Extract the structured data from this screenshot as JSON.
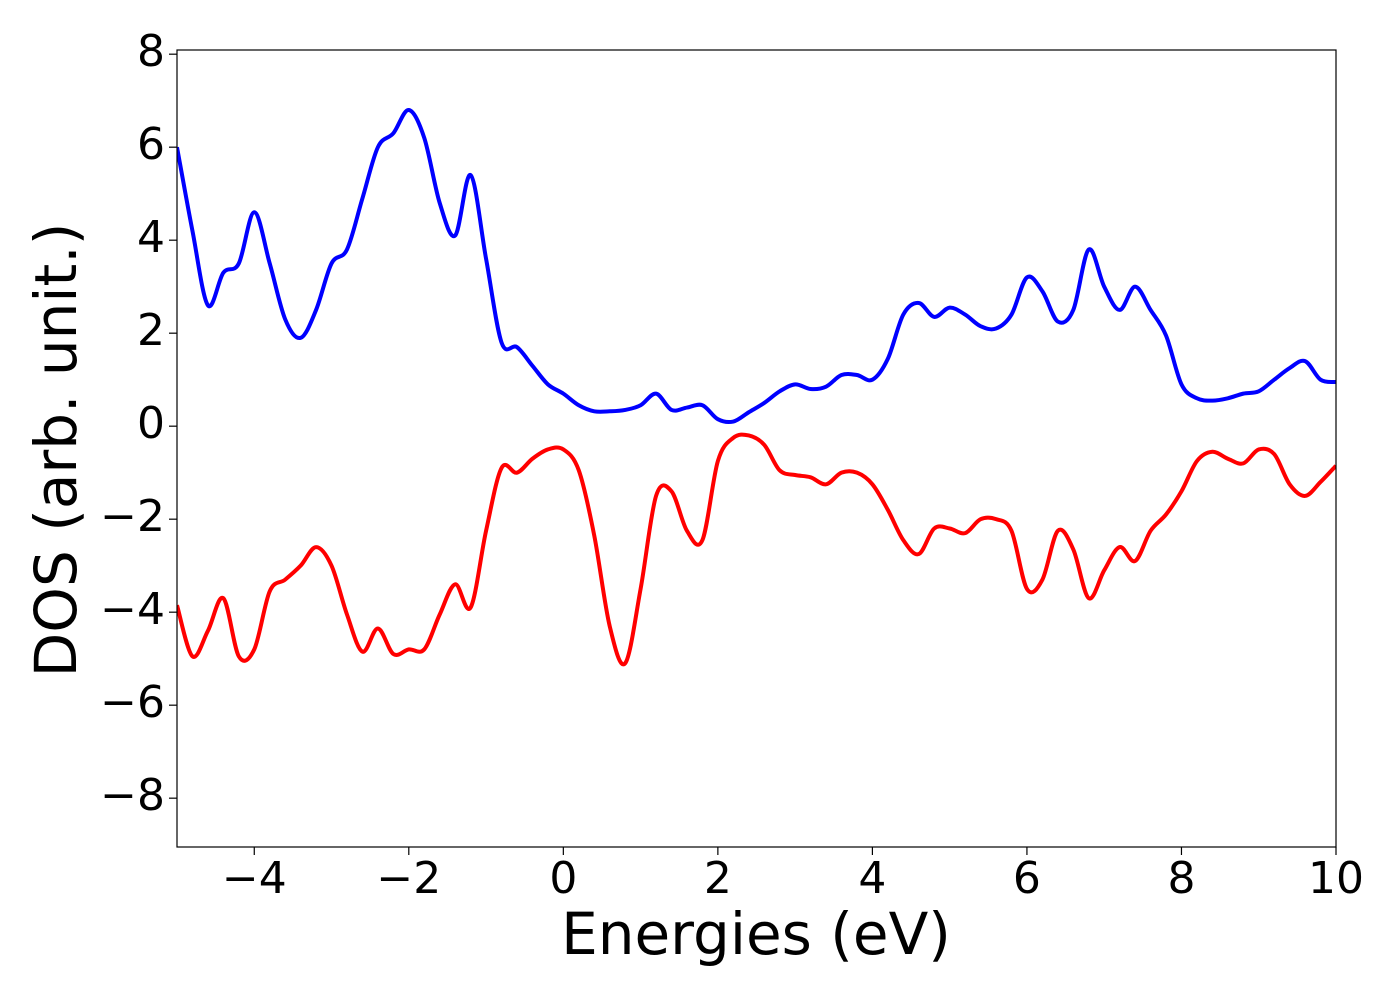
{
  "chart_data": {
    "type": "line",
    "xlabel": "Energies (eV)",
    "ylabel": "DOS (arb. unit.)",
    "x": [
      -5,
      -4.8,
      -4.6,
      -4.4,
      -4.2,
      -4,
      -3.8,
      -3.6,
      -3.4,
      -3.2,
      -3,
      -2.8,
      -2.6,
      -2.4,
      -2.2,
      -2,
      -1.8,
      -1.6,
      -1.4,
      -1.2,
      -1,
      -0.8,
      -0.6,
      -0.4,
      -0.2,
      0,
      0.2,
      0.4,
      0.6,
      0.8,
      1,
      1.2,
      1.4,
      1.6,
      1.8,
      2,
      2.2,
      2.4,
      2.6,
      2.8,
      3,
      3.2,
      3.4,
      3.6,
      3.8,
      4,
      4.2,
      4.4,
      4.6,
      4.8,
      5,
      5.2,
      5.4,
      5.6,
      5.8,
      6,
      6.2,
      6.4,
      6.6,
      6.8,
      7,
      7.2,
      7.4,
      7.6,
      7.8,
      8,
      8.2,
      8.4,
      8.6,
      8.8,
      9,
      9.2,
      9.4,
      9.6,
      9.8,
      10
    ],
    "series": [
      {
        "color": "#0000ff",
        "values": [
          6.0,
          4.2,
          2.6,
          3.3,
          3.5,
          4.6,
          3.5,
          2.3,
          1.9,
          2.5,
          3.5,
          3.8,
          4.9,
          6.0,
          6.3,
          6.8,
          6.2,
          4.8,
          4.1,
          5.4,
          3.6,
          1.8,
          1.7,
          1.3,
          0.9,
          0.7,
          0.45,
          0.32,
          0.32,
          0.35,
          0.45,
          0.7,
          0.35,
          0.4,
          0.45,
          0.15,
          0.1,
          0.3,
          0.5,
          0.75,
          0.9,
          0.8,
          0.85,
          1.1,
          1.1,
          1.0,
          1.45,
          2.4,
          2.65,
          2.35,
          2.55,
          2.4,
          2.15,
          2.1,
          2.4,
          3.2,
          2.9,
          2.25,
          2.5,
          3.8,
          3.0,
          2.5,
          3.0,
          2.5,
          1.95,
          0.9,
          0.6,
          0.55,
          0.6,
          0.7,
          0.75,
          1.0,
          1.25,
          1.4,
          1.0,
          0.95
        ]
      },
      {
        "color": "#ff0000",
        "values": [
          -3.85,
          -4.95,
          -4.4,
          -3.7,
          -4.95,
          -4.8,
          -3.55,
          -3.3,
          -3.0,
          -2.6,
          -3.0,
          -4.05,
          -4.85,
          -4.35,
          -4.9,
          -4.8,
          -4.8,
          -4.05,
          -3.4,
          -3.9,
          -2.25,
          -0.9,
          -1.0,
          -0.7,
          -0.5,
          -0.5,
          -0.95,
          -2.35,
          -4.3,
          -5.1,
          -3.5,
          -1.5,
          -1.4,
          -2.25,
          -2.45,
          -0.75,
          -0.25,
          -0.2,
          -0.4,
          -0.95,
          -1.05,
          -1.1,
          -1.25,
          -1.0,
          -1.0,
          -1.25,
          -1.8,
          -2.45,
          -2.75,
          -2.2,
          -2.2,
          -2.3,
          -2.0,
          -2.0,
          -2.25,
          -3.5,
          -3.3,
          -2.25,
          -2.65,
          -3.7,
          -3.1,
          -2.6,
          -2.9,
          -2.25,
          -1.9,
          -1.4,
          -0.75,
          -0.55,
          -0.7,
          -0.8,
          -0.5,
          -0.6,
          -1.25,
          -1.5,
          -1.2,
          -0.85
        ]
      }
    ],
    "xlim": [
      -5,
      10
    ],
    "xticks": [
      {
        "value": -4,
        "label": "−4"
      },
      {
        "value": -2,
        "label": "−2"
      },
      0,
      2,
      4,
      6,
      8,
      10
    ],
    "ylim": [
      -9.05,
      8.09
    ],
    "yticks": [
      {
        "value": -8,
        "label": "−8"
      },
      {
        "value": -6,
        "label": "−6"
      },
      {
        "value": -4,
        "label": "−4"
      },
      {
        "value": -2,
        "label": "−2"
      },
      0,
      2,
      4,
      6,
      8
    ]
  }
}
